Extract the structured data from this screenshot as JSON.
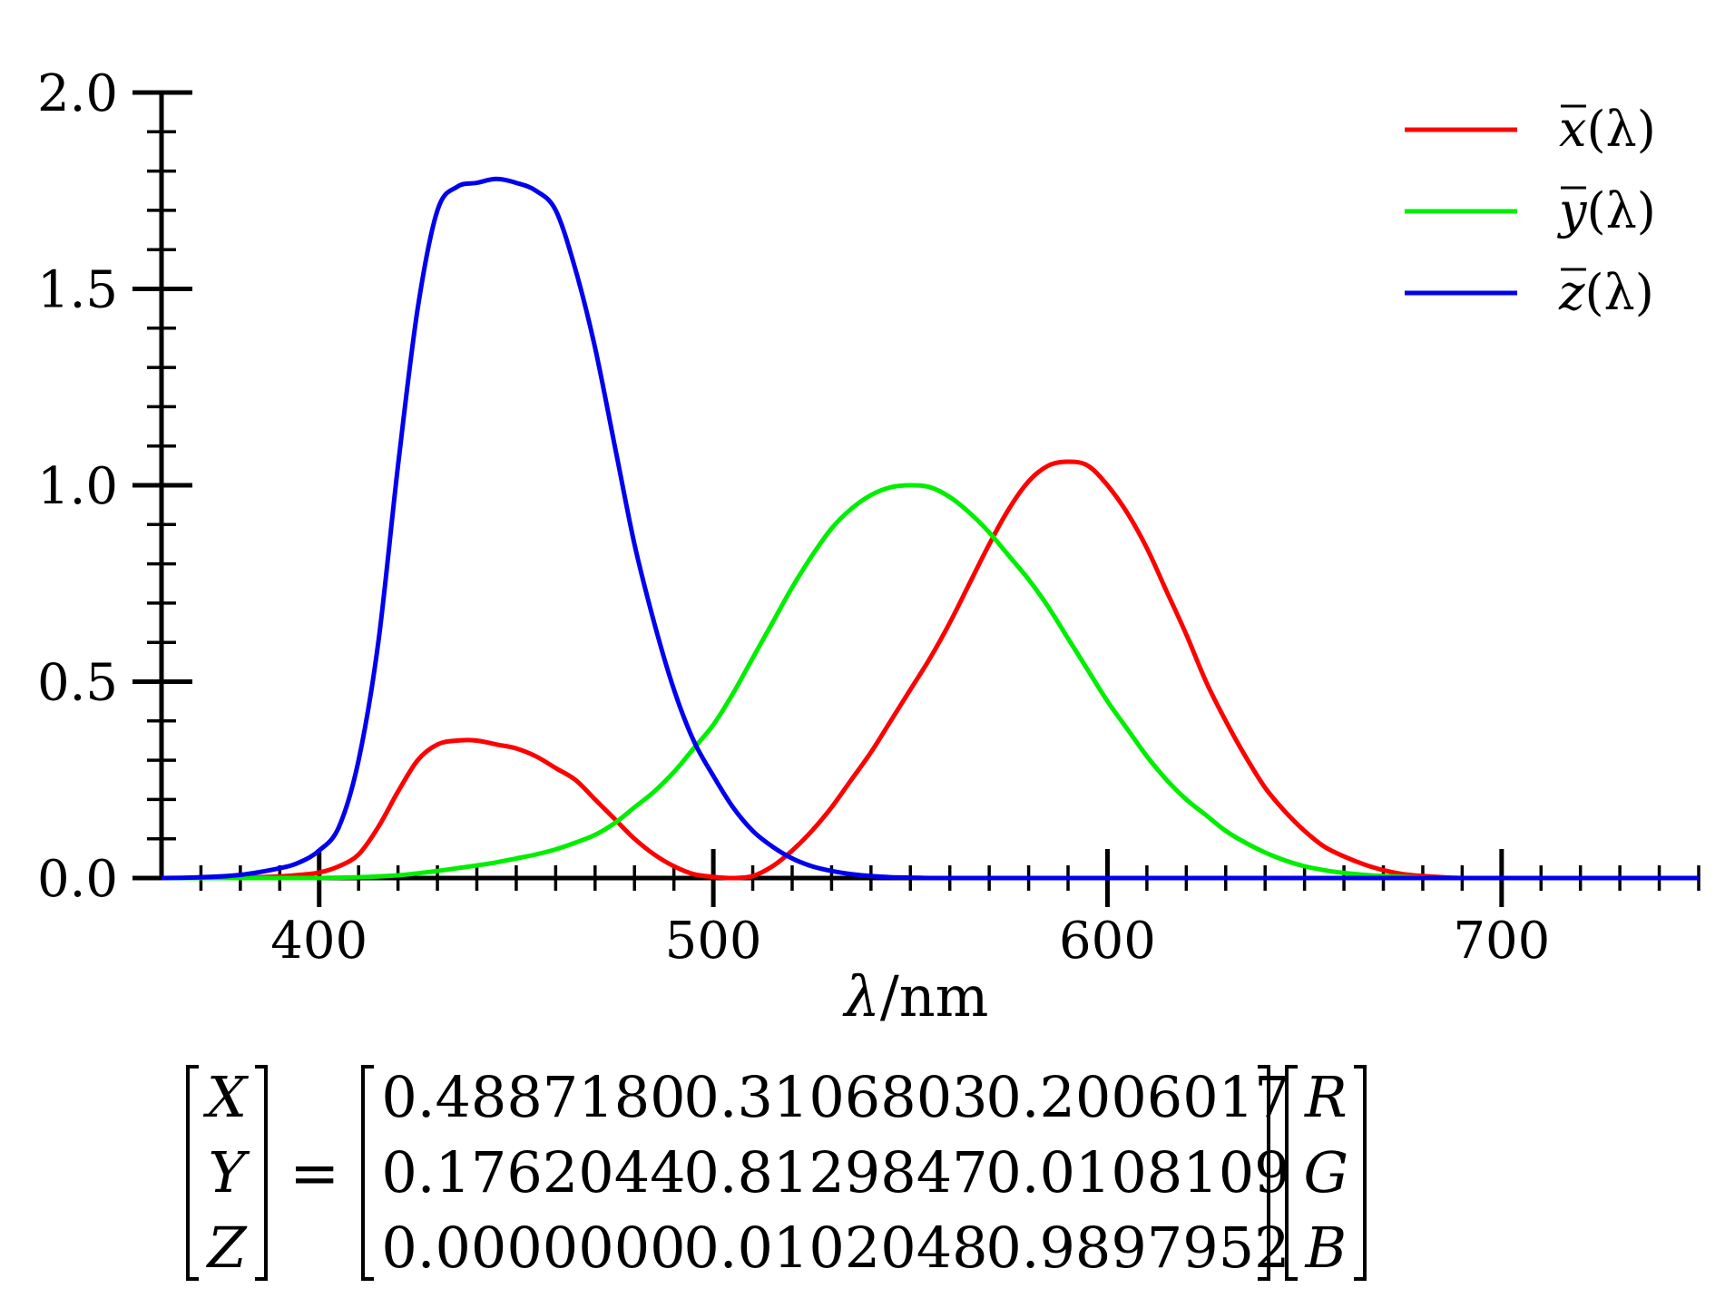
{
  "chart_data": {
    "type": "line",
    "title": "",
    "xlabel_var": "λ",
    "xlabel_unit": "/nm",
    "ylabel": "",
    "xlim": [
      360,
      750
    ],
    "ylim": [
      0,
      2.0
    ],
    "x_ticks": [
      400,
      500,
      600,
      700
    ],
    "y_ticks": [
      0.0,
      0.5,
      1.0,
      1.5,
      2.0
    ],
    "y_tick_labels": [
      "0.0",
      "0.5",
      "1.0",
      "1.5",
      "2.0"
    ],
    "x_tick_labels": [
      "400",
      "500",
      "600",
      "700"
    ],
    "grid": false,
    "legend_position": "top-right",
    "x": [
      360,
      370,
      380,
      390,
      395,
      400,
      405,
      410,
      415,
      420,
      425,
      430,
      435,
      440,
      445,
      450,
      455,
      460,
      465,
      470,
      475,
      480,
      485,
      490,
      495,
      500,
      505,
      510,
      515,
      520,
      525,
      530,
      535,
      540,
      545,
      550,
      555,
      560,
      565,
      570,
      575,
      580,
      585,
      590,
      595,
      600,
      605,
      610,
      615,
      620,
      625,
      630,
      635,
      640,
      645,
      650,
      655,
      660,
      665,
      670,
      675,
      680,
      685,
      690,
      700,
      710,
      720,
      730,
      740,
      750
    ],
    "series": [
      {
        "name_base": "x",
        "name_arg": "(λ)",
        "color": "#ff0000",
        "values": [
          0.0,
          0.0,
          0.001,
          0.004,
          0.008,
          0.014,
          0.03,
          0.06,
          0.13,
          0.22,
          0.3,
          0.34,
          0.35,
          0.35,
          0.34,
          0.33,
          0.31,
          0.28,
          0.25,
          0.2,
          0.15,
          0.1,
          0.06,
          0.03,
          0.01,
          0.003,
          0.0,
          0.005,
          0.03,
          0.07,
          0.12,
          0.18,
          0.25,
          0.32,
          0.4,
          0.48,
          0.56,
          0.65,
          0.75,
          0.85,
          0.94,
          1.01,
          1.05,
          1.06,
          1.05,
          1.0,
          0.93,
          0.84,
          0.73,
          0.62,
          0.5,
          0.4,
          0.31,
          0.23,
          0.17,
          0.12,
          0.08,
          0.055,
          0.035,
          0.02,
          0.01,
          0.005,
          0.002,
          0.0,
          0.0,
          0.0,
          0.0,
          0.0,
          0.0,
          0.0
        ]
      },
      {
        "name_base": "y",
        "name_arg": "(λ)",
        "color": "#00ee00",
        "values": [
          0.0,
          0.0,
          0.0,
          0.0,
          0.0,
          0.0,
          0.001,
          0.002,
          0.004,
          0.007,
          0.012,
          0.018,
          0.025,
          0.032,
          0.04,
          0.05,
          0.06,
          0.073,
          0.09,
          0.11,
          0.14,
          0.18,
          0.22,
          0.27,
          0.33,
          0.39,
          0.47,
          0.56,
          0.65,
          0.74,
          0.82,
          0.89,
          0.94,
          0.975,
          0.995,
          1.0,
          0.995,
          0.97,
          0.93,
          0.88,
          0.82,
          0.76,
          0.69,
          0.61,
          0.53,
          0.45,
          0.38,
          0.31,
          0.25,
          0.2,
          0.16,
          0.12,
          0.09,
          0.065,
          0.045,
          0.03,
          0.02,
          0.013,
          0.008,
          0.005,
          0.003,
          0.001,
          0.0,
          0.0,
          0.0,
          0.0,
          0.0,
          0.0,
          0.0,
          0.0
        ]
      },
      {
        "name_base": "z",
        "name_arg": "(λ)",
        "color": "#0000ee",
        "values": [
          0.0,
          0.002,
          0.008,
          0.025,
          0.04,
          0.07,
          0.13,
          0.3,
          0.6,
          1.05,
          1.45,
          1.7,
          1.76,
          1.77,
          1.78,
          1.77,
          1.75,
          1.7,
          1.55,
          1.35,
          1.1,
          0.85,
          0.65,
          0.48,
          0.35,
          0.26,
          0.18,
          0.12,
          0.08,
          0.05,
          0.03,
          0.018,
          0.01,
          0.005,
          0.002,
          0.001,
          0.0,
          0.0,
          0.0,
          0.0,
          0.0,
          0.0,
          0.0,
          0.0,
          0.0,
          0.0,
          0.0,
          0.0,
          0.0,
          0.0,
          0.0,
          0.0,
          0.0,
          0.0,
          0.0,
          0.0,
          0.0,
          0.0,
          0.0,
          0.0,
          0.0,
          0.0,
          0.0,
          0.0,
          0.0,
          0.0,
          0.0,
          0.0,
          0.0,
          0.0
        ]
      }
    ]
  },
  "equation": {
    "lhs": [
      "X",
      "Y",
      "Z"
    ],
    "equals": "=",
    "matrix": [
      [
        "0.4887180",
        "0.3106803",
        "0.2006017"
      ],
      [
        "0.1762044",
        "0.8129847",
        "0.0108109"
      ],
      [
        "0.0000000",
        "0.0102048",
        "0.9897952"
      ]
    ],
    "rhs": [
      "R",
      "G",
      "B"
    ]
  }
}
